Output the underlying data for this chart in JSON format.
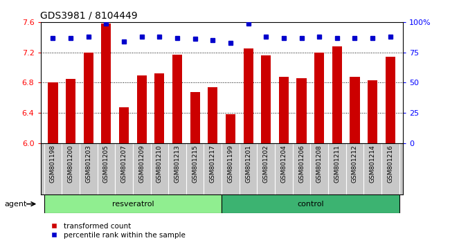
{
  "title": "GDS3981 / 8104449",
  "categories": [
    "GSM801198",
    "GSM801200",
    "GSM801203",
    "GSM801205",
    "GSM801207",
    "GSM801209",
    "GSM801210",
    "GSM801213",
    "GSM801215",
    "GSM801217",
    "GSM801199",
    "GSM801201",
    "GSM801202",
    "GSM801204",
    "GSM801206",
    "GSM801208",
    "GSM801211",
    "GSM801212",
    "GSM801214",
    "GSM801216"
  ],
  "bar_values": [
    6.8,
    6.85,
    7.2,
    7.58,
    6.48,
    6.9,
    6.92,
    7.17,
    6.68,
    6.74,
    6.38,
    7.25,
    7.16,
    6.88,
    6.86,
    7.2,
    7.28,
    6.88,
    6.83,
    7.14
  ],
  "percentile_values": [
    87,
    87,
    88,
    99,
    84,
    88,
    88,
    87,
    86,
    85,
    83,
    99,
    88,
    87,
    87,
    88,
    87,
    87,
    87,
    88
  ],
  "bar_color": "#cc0000",
  "percentile_color": "#0000cc",
  "resveratrol_count": 10,
  "control_count": 10,
  "ylim_left": [
    6.0,
    7.6
  ],
  "ylim_right": [
    0,
    100
  ],
  "yticks_left": [
    6.0,
    6.4,
    6.8,
    7.2,
    7.6
  ],
  "yticks_right": [
    0,
    25,
    50,
    75,
    100
  ],
  "ytick_labels_right": [
    "0",
    "25",
    "50",
    "75",
    "100%"
  ],
  "grid_values": [
    6.4,
    6.8,
    7.2
  ],
  "xlabel_agent": "agent",
  "label_resveratrol": "resveratrol",
  "label_control": "control",
  "legend_bar": "transformed count",
  "legend_pct": "percentile rank within the sample",
  "bg_color_resveratrol": "#90EE90",
  "bg_color_control": "#3CB371",
  "tick_label_area_color": "#c8c8c8",
  "bar_width": 0.55,
  "fig_width": 6.5,
  "fig_height": 3.54,
  "dpi": 100
}
